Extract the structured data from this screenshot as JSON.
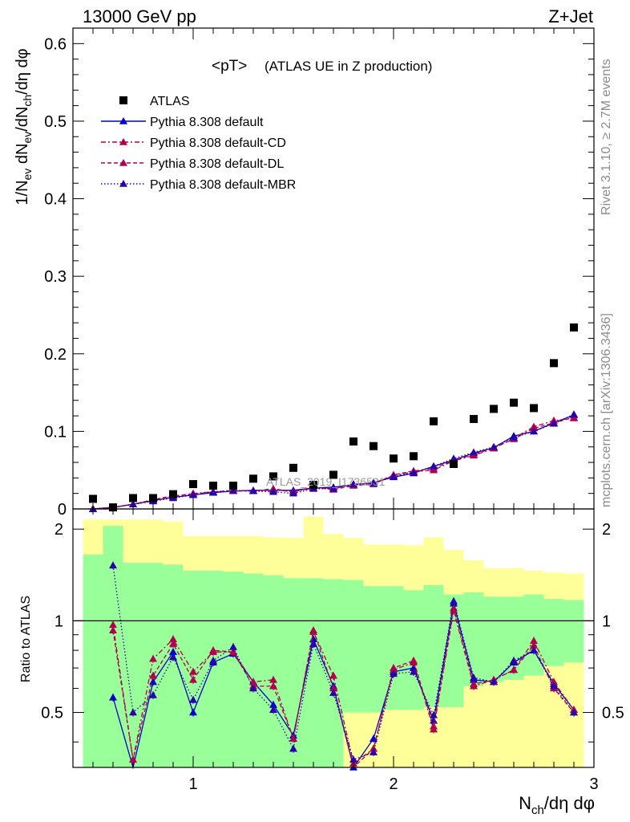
{
  "header": {
    "left": "13000 GeV pp",
    "right": "Z+Jet"
  },
  "plot_title": {
    "main": "<pT>",
    "detail": "(ATLAS UE in Z production)"
  },
  "side_labels": {
    "rivet": "Rivet 3.1.10, ≥ 2.7M events",
    "mcplots": "mcplots.cern.ch [arXiv:1306.3436]"
  },
  "watermark": "ATLAS_2019_I1736531",
  "colors": {
    "atlas": "#000000",
    "default": "#0000cc",
    "cd": "#b0004e",
    "dl": "#b0004e",
    "mbr": "#2a00aa",
    "band_inner": "#99ff99",
    "band_outer": "#ffff99"
  },
  "chart_data": [
    {
      "type": "scatter",
      "ylabel": "1/N_ev dN_ev/dN_ch/dη dφ",
      "xlim": [
        0.4,
        3.0
      ],
      "ylim": [
        0,
        0.62
      ],
      "yticks": [
        0,
        0.1,
        0.2,
        0.3,
        0.4,
        0.5,
        0.6
      ],
      "ytick_labels": [
        "0",
        "0.1",
        "0.2",
        "0.3",
        "0.4",
        "0.5",
        "0.6"
      ],
      "legend_position": "top-left",
      "x": [
        0.5,
        0.6,
        0.7,
        0.8,
        0.9,
        1.0,
        1.1,
        1.2,
        1.3,
        1.4,
        1.5,
        1.6,
        1.7,
        1.8,
        1.9,
        2.0,
        2.1,
        2.2,
        2.3,
        2.4,
        2.5,
        2.6,
        2.7,
        2.8,
        2.9
      ],
      "series": [
        {
          "name": "ATLAS",
          "marker": "square",
          "values": [
            0.013,
            0.002,
            0.014,
            0.014,
            0.019,
            0.032,
            0.03,
            0.03,
            0.039,
            0.042,
            0.053,
            0.031,
            0.044,
            0.087,
            0.081,
            0.065,
            0.068,
            0.113,
            0.058,
            0.116,
            0.129,
            0.137,
            0.13,
            0.188,
            0.234
          ]
        },
        {
          "name": "Pythia 8.308 default",
          "line": "solid",
          "values": [
            0.0,
            0.002,
            0.006,
            0.011,
            0.015,
            0.018,
            0.021,
            0.023,
            0.024,
            0.024,
            0.024,
            0.027,
            0.028,
            0.031,
            0.034,
            0.041,
            0.046,
            0.055,
            0.063,
            0.072,
            0.079,
            0.094,
            0.1,
            0.111,
            0.121
          ]
        },
        {
          "name": "Pythia 8.308 default-CD",
          "line": "dash-dot",
          "values": [
            0.0,
            0.002,
            0.006,
            0.01,
            0.016,
            0.02,
            0.022,
            0.023,
            0.023,
            0.025,
            0.022,
            0.027,
            0.026,
            0.032,
            0.033,
            0.043,
            0.048,
            0.05,
            0.062,
            0.069,
            0.078,
            0.091,
            0.106,
            0.114,
            0.117
          ]
        },
        {
          "name": "Pythia 8.308 default-DL",
          "line": "dashed",
          "values": [
            0.0,
            0.002,
            0.006,
            0.012,
            0.017,
            0.019,
            0.022,
            0.024,
            0.023,
            0.026,
            0.022,
            0.028,
            0.025,
            0.03,
            0.032,
            0.044,
            0.049,
            0.052,
            0.063,
            0.07,
            0.079,
            0.09,
            0.104,
            0.111,
            0.118
          ]
        },
        {
          "name": "Pythia 8.308 default-MBR",
          "line": "dotted",
          "values": [
            0.0,
            0.002,
            0.006,
            0.01,
            0.014,
            0.018,
            0.022,
            0.024,
            0.023,
            0.022,
            0.02,
            0.026,
            0.026,
            0.032,
            0.033,
            0.042,
            0.047,
            0.055,
            0.065,
            0.073,
            0.08,
            0.092,
            0.1,
            0.11,
            0.122
          ]
        }
      ]
    },
    {
      "type": "line",
      "xlabel": "N_ch/dη dφ",
      "ylabel": "Ratio to ATLAS",
      "xlim": [
        0.4,
        3.0
      ],
      "ylim": [
        0.33,
        2.33
      ],
      "xticks": [
        1,
        2,
        3
      ],
      "xtick_labels": [
        "1",
        "2",
        "3"
      ],
      "yticks": [
        0.5,
        1,
        2
      ],
      "ytick_labels": [
        "0.5",
        "1",
        "2"
      ],
      "reference_line": 1,
      "x": [
        0.5,
        0.6,
        0.7,
        0.8,
        0.9,
        1.0,
        1.1,
        1.2,
        1.3,
        1.4,
        1.5,
        1.6,
        1.7,
        1.8,
        1.9,
        2.0,
        2.1,
        2.2,
        2.3,
        2.4,
        2.5,
        2.6,
        2.7,
        2.8,
        2.9
      ],
      "bands": {
        "inner": {
          "lo": [
            0.33,
            0.33,
            0.33,
            0.33,
            0.33,
            0.33,
            0.33,
            0.33,
            0.33,
            0.33,
            0.33,
            0.33,
            0.33,
            0.5,
            0.5,
            0.51,
            0.51,
            0.52,
            0.52,
            0.61,
            0.63,
            0.64,
            0.66,
            0.71,
            0.73
          ],
          "hi": [
            1.65,
            2.05,
            1.55,
            1.55,
            1.53,
            1.46,
            1.46,
            1.45,
            1.43,
            1.41,
            1.38,
            1.38,
            1.37,
            1.36,
            1.3,
            1.3,
            1.26,
            1.31,
            1.22,
            1.24,
            1.2,
            1.2,
            1.22,
            1.18,
            1.17
          ]
        },
        "outer": {
          "lo": [
            0.33,
            0.33,
            0.33,
            0.33,
            0.33,
            0.33,
            0.33,
            0.33,
            0.33,
            0.33,
            0.33,
            0.33,
            0.33,
            0.33,
            0.33,
            0.33,
            0.33,
            0.33,
            0.33,
            0.33,
            0.33,
            0.33,
            0.33,
            0.33,
            0.33
          ],
          "hi": [
            2.15,
            2.15,
            2.15,
            2.15,
            2.12,
            1.9,
            1.9,
            1.9,
            1.9,
            1.88,
            1.87,
            2.2,
            1.93,
            1.87,
            1.78,
            1.78,
            1.77,
            1.88,
            1.71,
            1.58,
            1.49,
            1.49,
            1.46,
            1.44,
            1.43
          ]
        }
      },
      "series": [
        {
          "name": "Pythia 8.308 default",
          "values": [
            null,
            0.56,
            0.22,
            0.63,
            0.79,
            0.5,
            0.73,
            0.78,
            0.63,
            0.53,
            0.42,
            0.87,
            0.61,
            0.33,
            0.41,
            0.68,
            0.7,
            0.47,
            1.14,
            0.64,
            0.63,
            0.73,
            0.8,
            0.62,
            0.51
          ]
        },
        {
          "name": "Pythia 8.308 default-CD",
          "values": [
            null,
            0.97,
            0.35,
            0.75,
            0.87,
            0.68,
            0.79,
            0.79,
            0.63,
            0.64,
            0.41,
            0.92,
            0.66,
            0.34,
            0.38,
            0.69,
            0.73,
            0.44,
            1.08,
            0.61,
            0.64,
            0.69,
            0.86,
            0.63,
            0.51
          ]
        },
        {
          "name": "Pythia 8.308 default-DL",
          "values": [
            null,
            0.93,
            0.35,
            0.66,
            0.84,
            0.64,
            0.8,
            0.79,
            0.61,
            0.61,
            0.41,
            0.93,
            0.6,
            0.32,
            0.38,
            0.7,
            0.74,
            0.45,
            1.1,
            0.62,
            0.64,
            0.69,
            0.83,
            0.6,
            0.5
          ]
        },
        {
          "name": "Pythia 8.308 default-MBR",
          "values": [
            null,
            1.52,
            0.5,
            0.57,
            0.76,
            0.55,
            0.74,
            0.82,
            0.6,
            0.51,
            0.38,
            0.84,
            0.58,
            0.35,
            0.37,
            0.67,
            0.68,
            0.49,
            1.16,
            0.65,
            0.63,
            0.74,
            0.8,
            0.61,
            0.5
          ]
        }
      ]
    }
  ]
}
